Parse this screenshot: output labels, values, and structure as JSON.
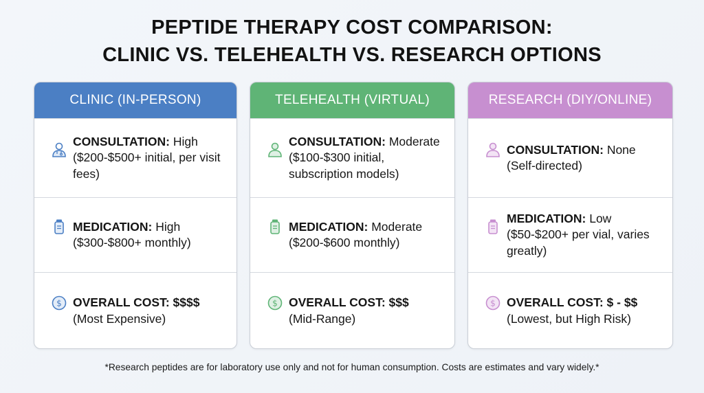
{
  "title": {
    "line1": "PEPTIDE THERAPY COST COMPARISON:",
    "line2": "CLINIC VS. TELEHEALTH VS. RESEARCH OPTIONS"
  },
  "columns": [
    {
      "header": "CLINIC (IN-PERSON)",
      "accent_color": "#4b7fc4",
      "consultation": {
        "icon": "doctor-icon",
        "label": "CONSULTATION:",
        "level": " High",
        "detail": "($200-$500+ initial, per visit fees)"
      },
      "medication": {
        "icon": "vial-icon",
        "label": "MEDICATION:",
        "level": " High",
        "detail": "($300-$800+ monthly)"
      },
      "overall": {
        "icon": "dollar-coin-icon",
        "label": "OVERALL COST:",
        "level": " $$$$",
        "detail": "(Most Expensive)"
      }
    },
    {
      "header": "TELEHEALTH (VIRTUAL)",
      "accent_color": "#5fb476",
      "consultation": {
        "icon": "person-icon",
        "label": "CONSULTATION:",
        "level": " Moderate",
        "detail": "($100-$300 initial, subscription models)"
      },
      "medication": {
        "icon": "vial-icon",
        "label": "MEDICATION:",
        "level": " Moderate",
        "detail": "($200-$600 monthly)"
      },
      "overall": {
        "icon": "dollar-coin-icon",
        "label": "OVERALL COST:",
        "level": " $$$",
        "detail": "(Mid-Range)"
      }
    },
    {
      "header": "RESEARCH (DIY/ONLINE)",
      "accent_color": "#c78fd0",
      "consultation": {
        "icon": "person-icon",
        "label": "CONSULTATION:",
        "level": " None",
        "detail": "(Self-directed)"
      },
      "medication": {
        "icon": "vial-icon",
        "label": "MEDICATION:",
        "level": " Low",
        "detail": "($50-$200+ per vial, varies greatly)"
      },
      "overall": {
        "icon": "dollar-coin-icon",
        "label": "OVERALL COST:",
        "level": " $ - $$",
        "detail": "(Lowest, but High Risk)"
      }
    }
  ],
  "footnote": "*Research peptides are for laboratory use only and not for human consumption. Costs are estimates and vary widely.*"
}
